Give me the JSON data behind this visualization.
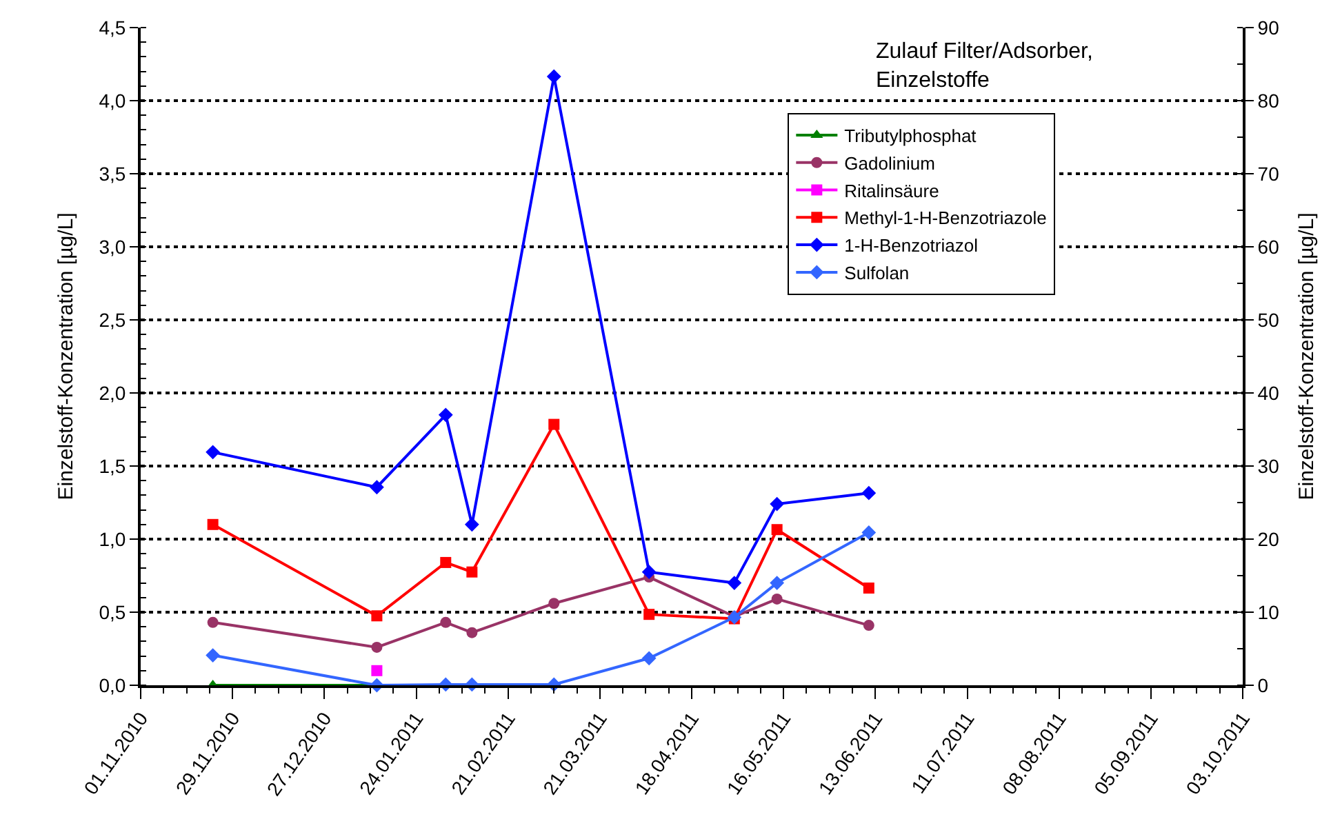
{
  "chart_data": {
    "type": "line",
    "legend_title": "Zulauf Filter/Adsorber,\nEinzelstoffe",
    "ylabel": "Einzelstoff-Konzentration [µg/L]",
    "y2label": "Einzelstoff-Konzentration [µg/L]",
    "xlim": [
      "2010-11-01",
      "2011-10-03"
    ],
    "xticks": [
      {
        "value": "2010-11-01",
        "label": "01.11.2010"
      },
      {
        "value": "2010-11-29",
        "label": "29.11.2010"
      },
      {
        "value": "2010-12-27",
        "label": "27.12.2010"
      },
      {
        "value": "2011-01-24",
        "label": "24.01.2011"
      },
      {
        "value": "2011-02-21",
        "label": "21.02.2011"
      },
      {
        "value": "2011-03-21",
        "label": "21.03.2011"
      },
      {
        "value": "2011-04-18",
        "label": "18.04.2011"
      },
      {
        "value": "2011-05-16",
        "label": "16.05.2011"
      },
      {
        "value": "2011-06-13",
        "label": "13.06.2011"
      },
      {
        "value": "2011-07-11",
        "label": "11.07.2011"
      },
      {
        "value": "2011-08-08",
        "label": "08.08.2011"
      },
      {
        "value": "2011-09-05",
        "label": "05.09.2011"
      },
      {
        "value": "2011-10-03",
        "label": "03.10.2011"
      }
    ],
    "ylim": [
      0,
      4.5
    ],
    "yticks": [
      {
        "value": 0,
        "label": "0,0"
      },
      {
        "value": 0.5,
        "label": "0,5"
      },
      {
        "value": 1,
        "label": "1,0"
      },
      {
        "value": 1.5,
        "label": "1,5"
      },
      {
        "value": 2,
        "label": "2,0"
      },
      {
        "value": 2.5,
        "label": "2,5"
      },
      {
        "value": 3,
        "label": "3,0"
      },
      {
        "value": 3.5,
        "label": "3,5"
      },
      {
        "value": 4,
        "label": "4,0"
      },
      {
        "value": 4.5,
        "label": "4,5"
      }
    ],
    "y2lim": [
      0,
      90
    ],
    "y2ticks": [
      0,
      10,
      20,
      30,
      40,
      50,
      60,
      70,
      80,
      90
    ],
    "grid": "y",
    "legend": "top right",
    "series": [
      {
        "name": "Tributylphosphat",
        "color": "#008000",
        "marker": "triangle",
        "x": [
          "2010-11-23",
          "2011-01-12"
        ],
        "values": [
          0,
          0
        ]
      },
      {
        "name": "Gadolinium",
        "color": "#993366",
        "marker": "circle",
        "x": [
          "2010-11-23",
          "2011-01-12",
          "2011-02-02",
          "2011-02-10",
          "2011-03-07",
          "2011-04-05",
          "2011-05-01",
          "2011-05-14",
          "2011-06-11"
        ],
        "values": [
          0.43,
          0.26,
          0.43,
          0.36,
          0.56,
          0.74,
          0.47,
          0.59,
          0.41
        ]
      },
      {
        "name": "Ritalinsäure",
        "color": "#ff00ff",
        "marker": "square",
        "x": [
          "2011-01-12"
        ],
        "values": [
          0.1
        ]
      },
      {
        "name": "Methyl-1-H-Benzotriazole",
        "color": "#ff0000",
        "marker": "square",
        "axis": "y2",
        "x": [
          "2010-11-23",
          "2011-01-12",
          "2011-02-02",
          "2011-02-10",
          "2011-03-07",
          "2011-04-05",
          "2011-05-01",
          "2011-05-14",
          "2011-06-11"
        ],
        "values": [
          22.0,
          9.5,
          16.8,
          15.5,
          35.7,
          9.7,
          9.1,
          21.3,
          13.3
        ]
      },
      {
        "name": "1-H-Benzotriazol",
        "color": "#0000ff",
        "marker": "diamond",
        "axis": "y2",
        "x": [
          "2010-11-23",
          "2011-01-12",
          "2011-02-02",
          "2011-02-10",
          "2011-03-07",
          "2011-04-05",
          "2011-05-01",
          "2011-05-14",
          "2011-06-11"
        ],
        "values": [
          31.9,
          27.1,
          37.0,
          22.0,
          83.3,
          15.5,
          14.0,
          24.8,
          26.3
        ]
      },
      {
        "name": "Sulfolan",
        "color": "#3366ff",
        "marker": "diamond",
        "axis": "y2",
        "x": [
          "2010-11-23",
          "2011-01-12",
          "2011-02-02",
          "2011-02-10",
          "2011-03-07",
          "2011-04-05",
          "2011-05-01",
          "2011-05-14",
          "2011-06-11"
        ],
        "values": [
          4.1,
          0,
          0.1,
          0.1,
          0.1,
          3.7,
          9.3,
          14.0,
          20.9
        ]
      }
    ]
  }
}
